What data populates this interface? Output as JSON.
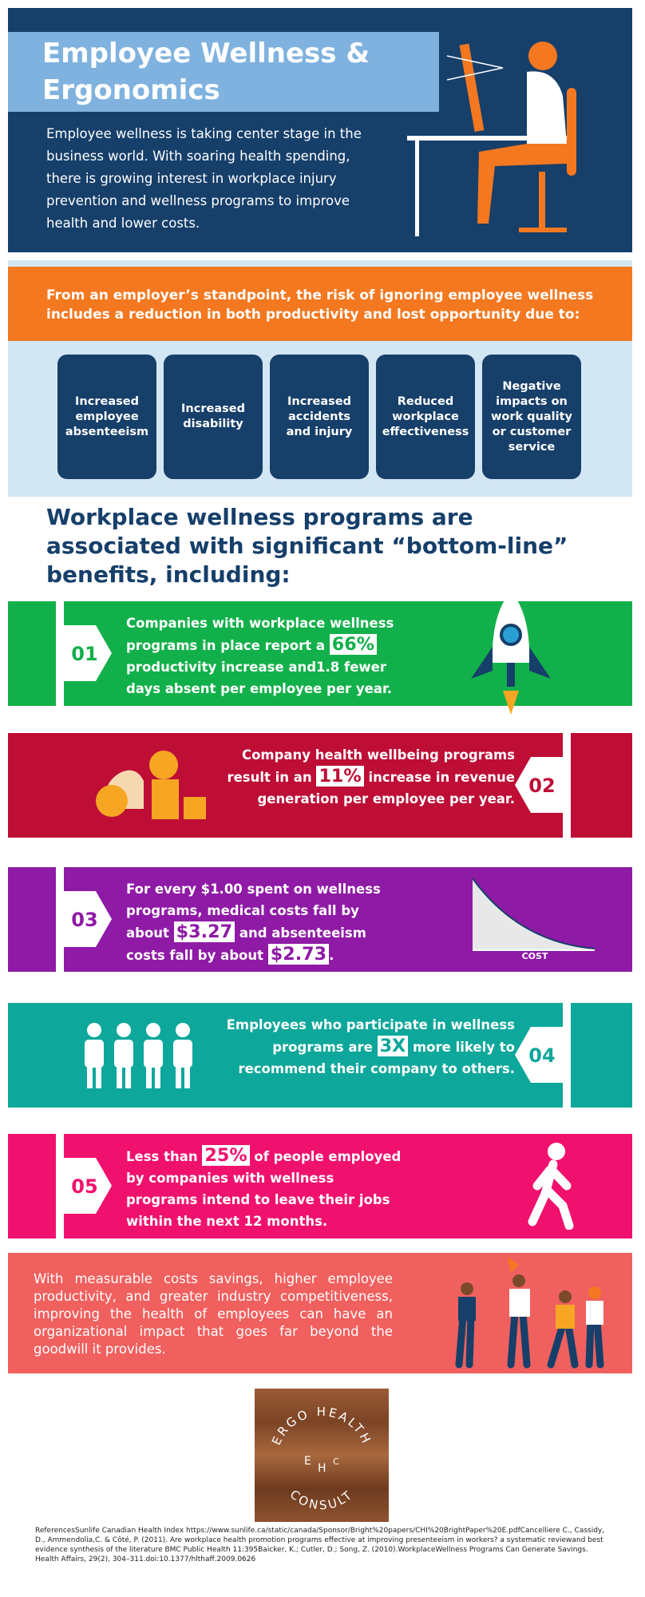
{
  "header": {
    "title": "Employee Wellness & Ergonomics",
    "intro": "Employee wellness is taking center stage in the business world. With soaring health spending, there is growing interest in workplace injury prevention and wellness programs to improve health and lower costs."
  },
  "risk": {
    "statement": "From an employer’s standpoint, the risk of ignoring employee wellness includes a reduction in both productivity and lost opportunity due to:",
    "cards": [
      "Increased employee absenteeism",
      "Increased disability",
      "Increased accidents and injury",
      "Reduced workplace effectiveness",
      "Negative impacts on work quality or customer service"
    ]
  },
  "benefits": {
    "heading": "Workplace wellness programs are associated with significant “bottom-line” benefits, including:",
    "items": [
      {
        "number": "01",
        "segments": [
          "Companies with workplace wellness programs in place report a ",
          "66%",
          " productivity increase and1.8 fewer days absent per employee per year."
        ]
      },
      {
        "number": "02",
        "segments": [
          "Company health wellbeing programs result in an ",
          "11%",
          " increase in revenue generation per employee per year."
        ]
      },
      {
        "number": "03",
        "segments": [
          "For every $1.00 spent on wellness programs, medical costs fall by about ",
          "$3.27",
          " and absenteeism costs fall by about ",
          "$2.73",
          "."
        ],
        "chart_label": "COST"
      },
      {
        "number": "04",
        "segments": [
          "Employees who participate in wellness programs are ",
          "3X",
          " more likely to recommend their company to others."
        ]
      },
      {
        "number": "05",
        "segments": [
          "Less than ",
          "25%",
          " of people employed by companies with wellness programs intend to leave their jobs within the next 12 months."
        ]
      }
    ]
  },
  "conclusion": "With measurable costs savings, higher employee productivity, and greater industry competitiveness, improving the health of employees can have an organizational impact that goes far beyond the goodwill it provides.",
  "logo": {
    "top": "ERGO HEALTH",
    "left": "E",
    "middle": "H",
    "right": "C",
    "bottom": "CONSULT"
  },
  "references": "ReferencesSunlife Canadian Health Index https://www.sunlife.ca/static/canada/Sponsor/Bright%20papers/CHI%20BrightPaper%20E.pdfCancelliere C., Cassidy, D., Ammendolia,C. & Côté, P. (2011). Are workplace health promotion programs effective at improving presenteeism in workers? a systematic reviewand best evidence synthesis of the literature BMC Public Health 11:395Baicker, K.; Cutler, D.; Song, Z. (2010).WorkplaceWellness Programs Can Generate Savings. Health Affairs, 29(2), 304–311.doi:10.1377/hlthaff.2009.0626"
}
